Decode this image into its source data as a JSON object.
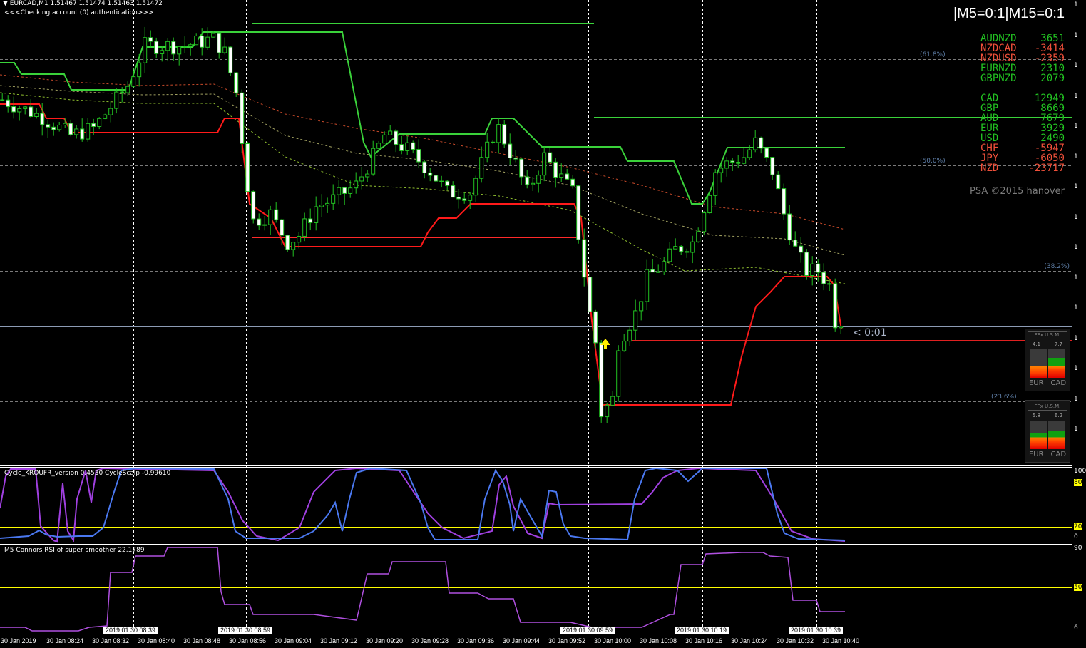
{
  "header": {
    "symbol_line": "EURCAD,M1  1.51467 1.51474 1.51463 1.51472",
    "status_line": "<<<Checking account (0) authentication>>>"
  },
  "timeframes_text": "|M5=0:1|M15=0:1",
  "strength": {
    "pairs": [
      {
        "name": "AUDNZD",
        "value": "3651",
        "color": "#22c322"
      },
      {
        "name": "NZDCAD",
        "value": "-3414",
        "color": "#f0503a"
      },
      {
        "name": "NZDUSD",
        "value": "-2359",
        "color": "#f0503a"
      },
      {
        "name": "EURNZD",
        "value": "2310",
        "color": "#22c322"
      },
      {
        "name": "GBPNZD",
        "value": "2079",
        "color": "#22c322"
      }
    ],
    "currencies": [
      {
        "name": "CAD",
        "value": "12949",
        "color": "#22c322"
      },
      {
        "name": "GBP",
        "value": "8669",
        "color": "#22c322"
      },
      {
        "name": "AUD",
        "value": "7679",
        "color": "#22c322"
      },
      {
        "name": "EUR",
        "value": "3929",
        "color": "#22c322"
      },
      {
        "name": "USD",
        "value": "2490",
        "color": "#22c322"
      },
      {
        "name": "CHF",
        "value": "-5947",
        "color": "#f0503a"
      },
      {
        "name": "JPY",
        "value": "-6050",
        "color": "#f0503a"
      },
      {
        "name": "NZD",
        "value": "-23717",
        "color": "#f0503a"
      }
    ]
  },
  "copyright": "PSA ©2015 hanover",
  "fib_levels": [
    "(61.8%)",
    "(50.0%)",
    "(38.2%)",
    "(23.6%)"
  ],
  "countdown": "< 0:01",
  "usm_widgets": [
    {
      "title": "FFx U.S.M.",
      "left_value": "4.1",
      "right_value": "7.7",
      "left_level": 0.4,
      "right_level": 0.7,
      "left_label": "EUR",
      "right_label": "CAD"
    },
    {
      "title": "FFx U.S.M.",
      "left_value": "5.8",
      "right_value": "6.2",
      "left_level": 0.55,
      "right_level": 0.65,
      "left_label": "EUR",
      "right_label": "CAD"
    }
  ],
  "indicators": {
    "cycle_title": "Cycle_KROUFR_version 0.4530  CycleScalp -0.99610",
    "cycle_levels": [
      "100",
      "80",
      "20",
      "0"
    ],
    "rsi_title": "M5 Connors RSI of super smoother 22.1789",
    "rsi_levels": [
      "90",
      "50",
      "6"
    ]
  },
  "time_axis": {
    "labels": [
      "30 Jan 2019",
      "30 Jan 08:24",
      "30 Jan 08:32",
      "30 Jan 08:40",
      "30 Jan 08:48",
      "30 Jan 08:56",
      "30 Jan 09:04",
      "30 Jan 09:12",
      "30 Jan 09:20",
      "30 Jan 09:28",
      "30 Jan 09:36",
      "30 Jan 09:44",
      "30 Jan 09:52",
      "30 Jan 10:00",
      "30 Jan 10:08",
      "30 Jan 10:16",
      "30 Jan 10:24",
      "30 Jan 10:32",
      "30 Jan 10:40"
    ],
    "markers": [
      "2019.01.30 08:39",
      "2019.01.30 08:59",
      "2019.01.30 09:59",
      "2019.01.30 10:19",
      "2019.01.30 10:39"
    ]
  },
  "chart_data": {
    "type": "candlestick",
    "symbol": "EURCAD",
    "timeframe": "M1",
    "last_close": 1.51472,
    "price_path": [
      [
        "08:16",
        1.51631
      ],
      [
        "08:23",
        1.51619
      ],
      [
        "08:28",
        1.51606
      ],
      [
        "08:32",
        1.51611
      ],
      [
        "08:38",
        1.51641
      ],
      [
        "08:41",
        1.51669
      ],
      [
        "08:48",
        1.51669
      ],
      [
        "08:53",
        1.51674
      ],
      [
        "08:55",
        1.51664
      ],
      [
        "08:57",
        1.51636
      ],
      [
        "08:59",
        1.51571
      ],
      [
        "09:00",
        1.51546
      ],
      [
        "09:03",
        1.51551
      ],
      [
        "09:06",
        1.51531
      ],
      [
        "09:08",
        1.51536
      ],
      [
        "09:11",
        1.51556
      ],
      [
        "09:14",
        1.51561
      ],
      [
        "09:18",
        1.51571
      ],
      [
        "09:21",
        1.51591
      ],
      [
        "09:23",
        1.51606
      ],
      [
        "09:27",
        1.51596
      ],
      [
        "09:31",
        1.51581
      ],
      [
        "09:34",
        1.51566
      ],
      [
        "09:38",
        1.51566
      ],
      [
        "09:42",
        1.51606
      ],
      [
        "09:43",
        1.51611
      ],
      [
        "09:46",
        1.51586
      ],
      [
        "09:48",
        1.51566
      ],
      [
        "09:51",
        1.51591
      ],
      [
        "09:53",
        1.51581
      ],
      [
        "09:56",
        1.51566
      ],
      [
        "09:57",
        1.51536
      ],
      [
        "09:59",
        1.51481
      ],
      [
        "10:00",
        1.51461
      ],
      [
        "10:01",
        1.51411
      ],
      [
        "10:03",
        1.51421
      ],
      [
        "10:04",
        1.51461
      ],
      [
        "10:07",
        1.51481
      ],
      [
        "10:09",
        1.51506
      ],
      [
        "10:12",
        1.51516
      ],
      [
        "10:14",
        1.51526
      ],
      [
        "10:17",
        1.51531
      ],
      [
        "10:19",
        1.51556
      ],
      [
        "10:21",
        1.51581
      ],
      [
        "10:23",
        1.51586
      ],
      [
        "10:26",
        1.51591
      ],
      [
        "10:28",
        1.51601
      ],
      [
        "10:31",
        1.51581
      ],
      [
        "10:33",
        1.51551
      ],
      [
        "10:35",
        1.51526
      ],
      [
        "10:37",
        1.51511
      ],
      [
        "10:39",
        1.51511
      ],
      [
        "10:41",
        1.51501
      ],
      [
        "10:42",
        1.51476
      ],
      [
        "10:43",
        1.51472
      ]
    ]
  },
  "colors": {
    "bull_candle": "#000000",
    "bear_candle": "#ffffff",
    "candle_outline": "#22c322",
    "stop_up": "#3ad23a",
    "stop_down": "#ff1a1a",
    "bid_line": "#8c9bb4",
    "cycle_main": "#a040e0",
    "cycle_scalp": "#4a78f0",
    "level_line": "#ffff00"
  }
}
